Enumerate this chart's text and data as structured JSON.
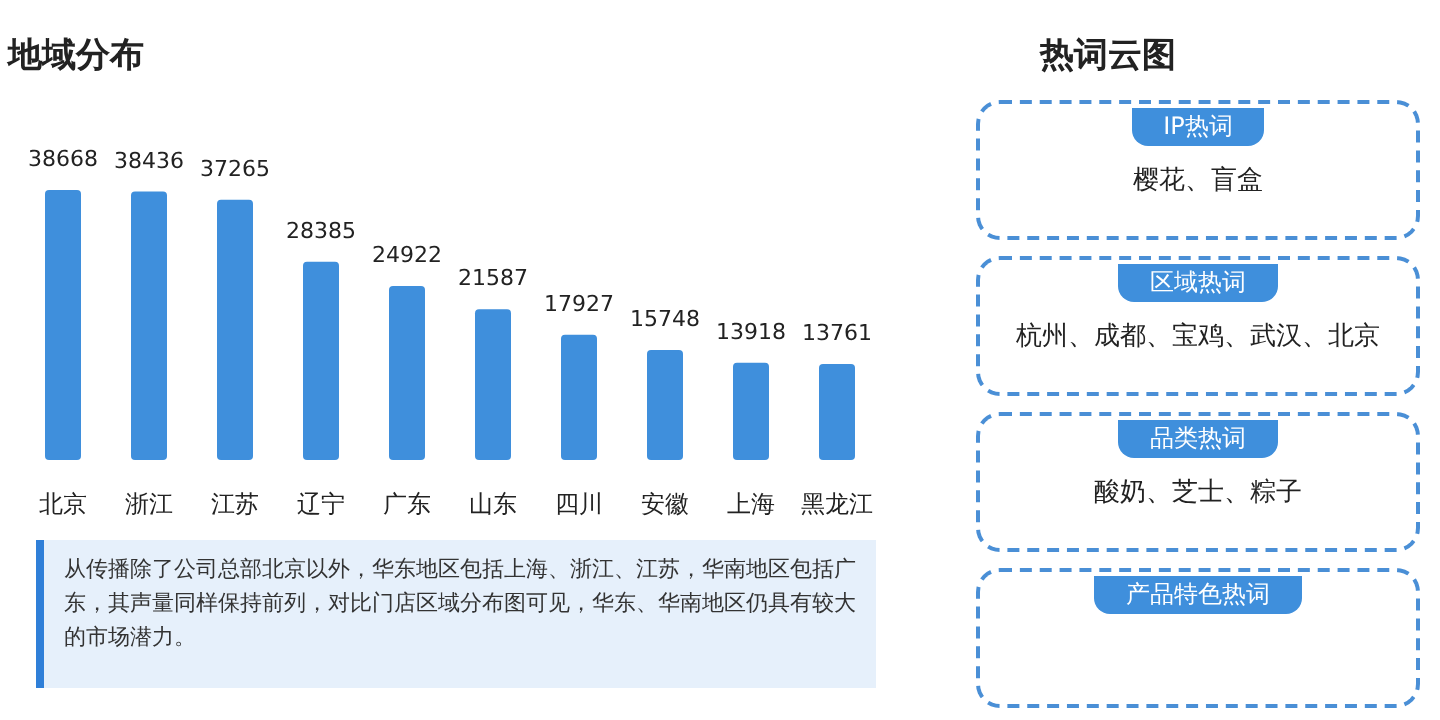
{
  "chart_data": [
    {
      "type": "bar",
      "title": "地域分布",
      "categories": [
        "北京",
        "浙江",
        "江苏",
        "辽宁",
        "广东",
        "山东",
        "四川",
        "安徽",
        "上海",
        "黑龙江"
      ],
      "series": [
        {
          "color": "#3f8fdc",
          "values": [
            38668,
            38436,
            37265,
            28385,
            24922,
            21587,
            17927,
            15748,
            13918,
            13761
          ]
        }
      ],
      "data_labels": true,
      "annotations": [
        "从传播除了公司总部北京以外，华东地区包括上海、浙江、江苏，华南地区包括广东，其声量同样保持前列，对比门店区域分布图可见，华东、华南地区仍具有较大的市场潜力。"
      ]
    },
    {
      "type": "other",
      "title": "热词云图",
      "annotations": [
        "IP热词",
        "樱花、盲盒",
        "区域热词",
        "杭州、成都、宝鸡、武汉、北京",
        "品类热词",
        "酸奶、芝士、粽子",
        "产品特色热词"
      ]
    }
  ]
}
